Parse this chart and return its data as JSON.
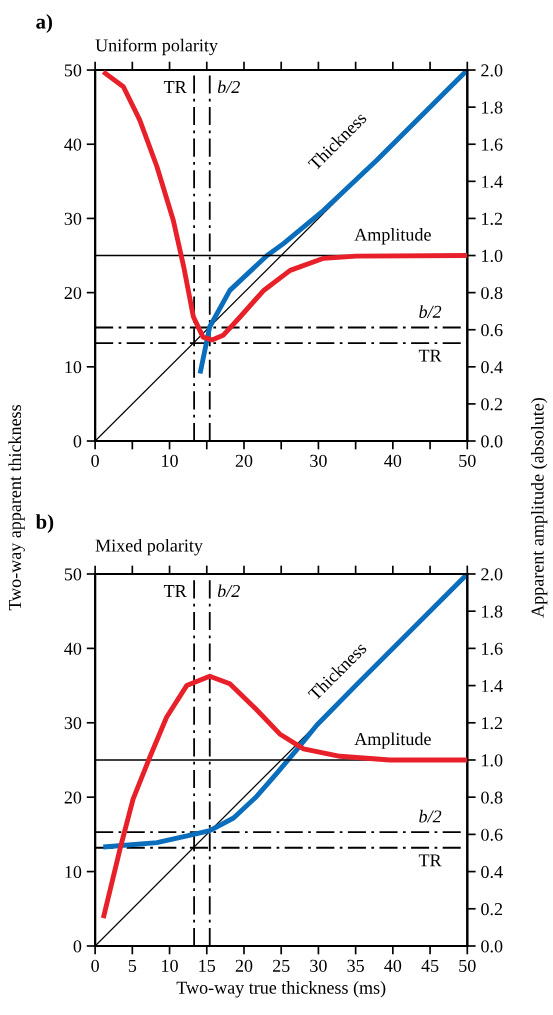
{
  "chart_data": [
    {
      "type": "line",
      "title": "a)",
      "subtitle": "Uniform polarity",
      "ylabel": "Two-way apparent thickness",
      "y2label": "Apparent amplitude (absolute)",
      "xlim": [
        0,
        50
      ],
      "xticks": [
        0,
        {
          "value": 5,
          "label": null
        },
        10,
        {
          "value": 15,
          "label": null
        },
        20,
        {
          "value": 25,
          "label": null
        },
        30,
        {
          "value": 35,
          "label": null
        },
        40,
        {
          "value": 45,
          "label": null
        },
        50
      ],
      "ylim": [
        0,
        50
      ],
      "yticks": [
        0,
        10,
        20,
        30,
        40,
        50
      ],
      "y2lim": [
        0,
        2
      ],
      "y2ticks": [
        {
          "value": 0,
          "label": "0.0"
        },
        0.2,
        0.4,
        0.6,
        0.8,
        {
          "value": 1,
          "label": "1.0"
        },
        1.2,
        1.4,
        1.6,
        1.8,
        {
          "value": 2,
          "label": "2.0"
        }
      ],
      "grid": false,
      "marker": "none",
      "series": [
        {
          "color": "#000000",
          "x": [
            0,
            50
          ],
          "values": [
            0,
            50
          ]
        },
        {
          "name": "Thickness",
          "color": "#0a6ebd",
          "x": [
            14.1,
            15.4,
            18.1,
            23.1,
            25.3,
            30.7,
            37.8,
            50
          ],
          "values": [
            9.1,
            15.4,
            20.3,
            25.0,
            26.6,
            31.1,
            37.8,
            50
          ]
        },
        {
          "name": "Amplitude",
          "axis": "y2",
          "color": "#e8202a",
          "x": [
            1.1,
            3.8,
            6.0,
            8.3,
            10.5,
            11.9,
            13.2,
            14.5,
            15.7,
            17.2,
            19.5,
            22.6,
            26.2,
            30.7,
            35.1,
            50
          ],
          "values": [
            1.99,
            1.91,
            1.73,
            1.48,
            1.19,
            0.94,
            0.67,
            0.56,
            0.545,
            0.57,
            0.67,
            0.81,
            0.92,
            0.985,
            0.997,
            1.0
          ]
        }
      ],
      "ref_lines": [
        {
          "axis": "y2",
          "value": 1.0,
          "color": "#000000",
          "line_style": "solid"
        },
        {
          "axis": "x",
          "value": 13.3,
          "label": "TR",
          "color": "#000000",
          "line_style": "dashed"
        },
        {
          "axis": "x",
          "value": 15.4,
          "label": "b/2",
          "color": "#000000",
          "line_style": "dashed"
        },
        {
          "axis": "y",
          "value": 15.3,
          "label": "b/2",
          "color": "#000000",
          "line_style": "dashed"
        },
        {
          "axis": "y",
          "value": 13.2,
          "label": "TR",
          "color": "#000000",
          "line_style": "dashed"
        }
      ]
    },
    {
      "type": "line",
      "title": "b)",
      "subtitle": "Mixed polarity",
      "xlabel": "Two-way true thickness (ms)",
      "xlim": [
        0,
        50
      ],
      "xticks": [
        0,
        5,
        10,
        15,
        20,
        25,
        30,
        35,
        40,
        45,
        50
      ],
      "ylim": [
        0,
        50
      ],
      "yticks": [
        0,
        10,
        20,
        30,
        40,
        50
      ],
      "y2lim": [
        0,
        2
      ],
      "y2ticks": [
        {
          "value": 0,
          "label": "0.0"
        },
        0.2,
        0.4,
        0.6,
        0.8,
        {
          "value": 1,
          "label": "1.0"
        },
        1.2,
        1.4,
        1.6,
        1.8,
        {
          "value": 2,
          "label": "2.0"
        }
      ],
      "grid": false,
      "marker": "none",
      "series": [
        {
          "color": "#000000",
          "x": [
            0,
            50
          ],
          "values": [
            0,
            50
          ]
        },
        {
          "name": "Thickness",
          "color": "#0a6ebd",
          "x": [
            1.1,
            8.3,
            12.8,
            15.4,
            18.6,
            21.7,
            24.4,
            27.1,
            29.8,
            35.1,
            50
          ],
          "values": [
            13.3,
            13.9,
            14.9,
            15.5,
            17.2,
            20.1,
            23.2,
            26.4,
            29.7,
            35.1,
            50
          ]
        },
        {
          "name": "Amplitude",
          "axis": "y2",
          "color": "#e8202a",
          "x": [
            1.1,
            3.4,
            5.1,
            7.4,
            9.6,
            12.3,
            15.4,
            18.1,
            21.7,
            24.8,
            28.0,
            32.9,
            39.6,
            50
          ],
          "values": [
            0.15,
            0.53,
            0.79,
            1.02,
            1.23,
            1.4,
            1.45,
            1.41,
            1.27,
            1.14,
            1.06,
            1.02,
            1.0,
            1.0
          ]
        }
      ],
      "ref_lines": [
        {
          "axis": "y2",
          "value": 1.0,
          "color": "#000000",
          "line_style": "solid"
        },
        {
          "axis": "x",
          "value": 13.3,
          "label": "TR",
          "color": "#000000",
          "line_style": "dashed"
        },
        {
          "axis": "x",
          "value": 15.4,
          "label": "b/2",
          "color": "#000000",
          "line_style": "dashed"
        },
        {
          "axis": "y",
          "value": 15.3,
          "label": "b/2",
          "color": "#000000",
          "line_style": "dashed"
        },
        {
          "axis": "y",
          "value": 13.2,
          "label": "TR",
          "color": "#000000",
          "line_style": "dashed"
        }
      ]
    }
  ]
}
